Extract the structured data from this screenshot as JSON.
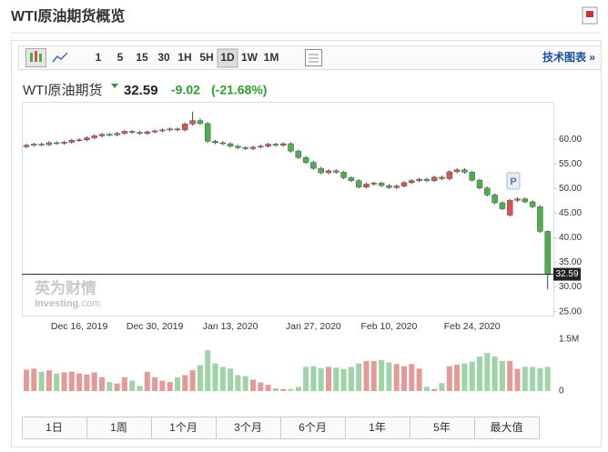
{
  "header": {
    "title": "WTI原油期货概览",
    "link": "技术图表 »"
  },
  "toolbar": [
    "1",
    "5",
    "15",
    "30",
    "1H",
    "5H",
    "1D",
    "1W",
    "1M"
  ],
  "toolbar_active": "1D",
  "quote": {
    "name": "WTI原油期货",
    "price": 32.59,
    "change": "-9.02",
    "change_pct": "(-21.68%)"
  },
  "watermark": {
    "cn": "英为财情",
    "en": "Investing",
    "suffix": ".com"
  },
  "marker": "P",
  "ranges": [
    "1日",
    "1周",
    "1个月",
    "3个月",
    "6个月",
    "1年",
    "5年",
    "最大值"
  ],
  "chart_data": {
    "type": "candlestick",
    "up_color": "#d9534f",
    "down_color": "#4cae4c",
    "volume_up_color": "#e39a98",
    "volume_down_color": "#9fd4a8",
    "ylim": [
      24.2,
      67.6
    ],
    "yticks": [
      {
        "value": 60,
        "label": "60.00"
      },
      {
        "value": 55,
        "label": "55.00"
      },
      {
        "value": 50,
        "label": "50.00"
      },
      {
        "value": 45,
        "label": "45.00"
      },
      {
        "value": 40,
        "label": "40.00"
      },
      {
        "value": 35,
        "label": "35.00"
      },
      {
        "value": 30,
        "label": "30.00"
      },
      {
        "value": 25,
        "label": "25.00"
      }
    ],
    "categories": [
      null,
      null,
      null,
      null,
      null,
      null,
      null,
      "Dec 16, 2019",
      null,
      null,
      null,
      null,
      null,
      null,
      null,
      null,
      null,
      "Dec 30, 2019",
      null,
      null,
      null,
      null,
      null,
      null,
      null,
      null,
      null,
      "Jan 13, 2020",
      null,
      null,
      null,
      null,
      null,
      null,
      null,
      null,
      null,
      null,
      "Jan 27, 2020",
      null,
      null,
      null,
      null,
      null,
      null,
      null,
      null,
      null,
      "Feb 10, 2020",
      null,
      null,
      null,
      null,
      null,
      null,
      null,
      null,
      null,
      null,
      "Feb 24, 2020",
      null,
      null,
      null,
      null,
      null,
      null,
      null,
      null,
      null,
      null
    ],
    "ohlc": [
      [
        58.5,
        59.1,
        58.2,
        58.8
      ],
      [
        58.8,
        59.3,
        58.5,
        59.0
      ],
      [
        59.0,
        59.3,
        58.6,
        58.9
      ],
      [
        58.9,
        59.6,
        58.6,
        59.3
      ],
      [
        59.3,
        59.6,
        58.9,
        59.2
      ],
      [
        59.2,
        59.7,
        58.9,
        59.4
      ],
      [
        59.4,
        60.1,
        59.1,
        59.8
      ],
      [
        59.8,
        60.2,
        59.5,
        59.9
      ],
      [
        59.9,
        60.6,
        59.6,
        60.3
      ],
      [
        60.3,
        61.0,
        60.0,
        60.7
      ],
      [
        60.7,
        61.3,
        60.4,
        61.0
      ],
      [
        61.0,
        61.3,
        60.6,
        60.9
      ],
      [
        60.9,
        61.5,
        60.6,
        61.2
      ],
      [
        61.2,
        61.9,
        60.9,
        61.6
      ],
      [
        61.6,
        61.9,
        61.1,
        61.4
      ],
      [
        61.4,
        61.7,
        60.9,
        61.2
      ],
      [
        61.2,
        61.8,
        60.9,
        61.5
      ],
      [
        61.5,
        62.0,
        61.2,
        61.7
      ],
      [
        61.7,
        62.2,
        61.4,
        61.9
      ],
      [
        61.9,
        62.4,
        61.6,
        62.1
      ],
      [
        62.1,
        62.4,
        61.6,
        61.9
      ],
      [
        61.9,
        63.4,
        61.6,
        63.1
      ],
      [
        63.1,
        65.6,
        62.8,
        63.8
      ],
      [
        63.8,
        64.2,
        62.9,
        63.2
      ],
      [
        63.2,
        63.5,
        59.3,
        59.6
      ],
      [
        59.6,
        59.9,
        59.0,
        59.3
      ],
      [
        59.3,
        59.6,
        58.8,
        59.1
      ],
      [
        59.1,
        59.4,
        58.3,
        58.6
      ],
      [
        58.6,
        58.9,
        58.0,
        58.3
      ],
      [
        58.3,
        58.6,
        57.8,
        58.1
      ],
      [
        58.1,
        58.7,
        57.8,
        58.4
      ],
      [
        58.4,
        58.9,
        58.1,
        58.6
      ],
      [
        58.6,
        59.3,
        58.3,
        59.0
      ],
      [
        59.0,
        59.3,
        58.5,
        58.8
      ],
      [
        58.8,
        59.4,
        58.5,
        59.1
      ],
      [
        59.1,
        59.4,
        57.3,
        57.6
      ],
      [
        57.6,
        57.9,
        56.0,
        56.3
      ],
      [
        56.3,
        56.6,
        55.0,
        55.3
      ],
      [
        55.3,
        55.6,
        53.8,
        54.1
      ],
      [
        54.1,
        54.4,
        52.9,
        53.2
      ],
      [
        53.2,
        53.9,
        52.9,
        53.6
      ],
      [
        53.6,
        53.9,
        53.0,
        53.3
      ],
      [
        53.3,
        53.6,
        51.9,
        52.2
      ],
      [
        52.2,
        52.5,
        51.3,
        51.6
      ],
      [
        51.6,
        51.9,
        50.0,
        50.3
      ],
      [
        50.3,
        51.2,
        50.0,
        50.9
      ],
      [
        50.9,
        51.4,
        50.6,
        51.1
      ],
      [
        51.1,
        51.4,
        50.3,
        50.6
      ],
      [
        50.6,
        50.9,
        49.9,
        50.2
      ],
      [
        50.2,
        50.8,
        49.9,
        50.5
      ],
      [
        50.5,
        51.5,
        50.2,
        51.2
      ],
      [
        51.2,
        51.9,
        50.9,
        51.6
      ],
      [
        51.6,
        52.2,
        51.3,
        51.9
      ],
      [
        51.9,
        52.2,
        51.3,
        51.6
      ],
      [
        51.6,
        52.6,
        51.3,
        52.3
      ],
      [
        52.3,
        52.6,
        51.7,
        52.0
      ],
      [
        52.0,
        53.7,
        51.7,
        53.4
      ],
      [
        53.4,
        54.1,
        53.1,
        53.8
      ],
      [
        53.8,
        54.1,
        53.0,
        53.3
      ],
      [
        53.3,
        53.6,
        51.4,
        51.7
      ],
      [
        51.7,
        52.0,
        49.8,
        50.1
      ],
      [
        50.1,
        50.4,
        48.4,
        48.7
      ],
      [
        48.7,
        49.0,
        46.8,
        47.1
      ],
      [
        47.1,
        47.4,
        45.6,
        45.9
      ],
      [
        44.6,
        47.9,
        44.3,
        47.6
      ],
      [
        47.6,
        48.2,
        47.3,
        47.9
      ],
      [
        47.9,
        48.2,
        47.0,
        47.3
      ],
      [
        47.3,
        47.6,
        46.0,
        46.3
      ],
      [
        46.3,
        46.6,
        41.0,
        41.3
      ],
      [
        41.3,
        41.5,
        29.5,
        32.59
      ]
    ],
    "volume": {
      "ylim": [
        0,
        1630000
      ],
      "yticks": [
        {
          "value": 1500000,
          "label": "1.5M"
        },
        0
      ],
      "values": [
        620000,
        650000,
        560000,
        600000,
        500000,
        540000,
        560000,
        510000,
        480000,
        540000,
        400000,
        260000,
        220000,
        400000,
        300000,
        150000,
        560000,
        400000,
        300000,
        260000,
        400000,
        460000,
        600000,
        750000,
        1180000,
        800000,
        700000,
        650000,
        460000,
        430000,
        330000,
        250000,
        180000,
        80000,
        60000,
        60000,
        120000,
        700000,
        720000,
        660000,
        700000,
        680000,
        640000,
        700000,
        800000,
        870000,
        870000,
        900000,
        830000,
        780000,
        720000,
        780000,
        650000,
        120000,
        60000,
        230000,
        720000,
        760000,
        800000,
        850000,
        1000000,
        1100000,
        1000000,
        870000,
        870000,
        640000,
        700000,
        700000,
        660000,
        700000
      ]
    }
  }
}
